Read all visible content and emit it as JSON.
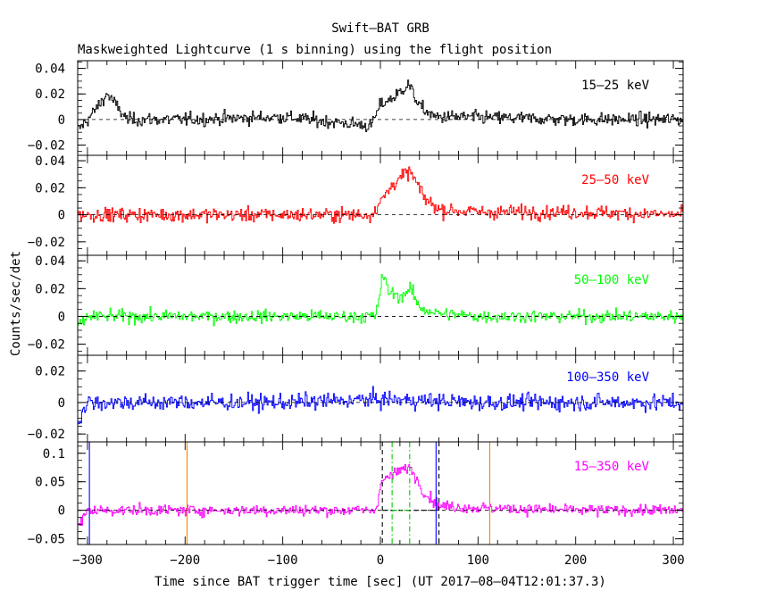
{
  "figure": {
    "title_line1": "Swift–BAT GRB",
    "title_line2": "Maskweighted Lightcurve (1 s binning) using the flight position",
    "ylabel": "Counts/sec/det",
    "xlabel": "Time since BAT trigger time [sec] (UT 2017–08–04T12:01:37.3)"
  },
  "chart_data": [
    {
      "type": "line",
      "name": "15–25 keV",
      "color": "#000000",
      "xlim": [
        -310,
        310
      ],
      "ylim": [
        -0.028,
        0.046
      ],
      "yticks": [
        -0.02,
        0,
        0.02,
        0.04
      ],
      "ytick_labels": [
        "−0.02",
        "0",
        "0.02",
        "0.04"
      ],
      "noise_sigma": 0.008,
      "pulses": [
        {
          "x": [
            0,
            20,
            30,
            45
          ],
          "y": [
            0.012,
            0.022,
            0.028,
            0.008
          ]
        }
      ],
      "series": [
        {
          "x": [
            -310,
            -300,
            -280,
            -260,
            -200,
            -100,
            -10,
            0,
            15,
            28,
            40,
            55,
            80,
            200,
            310
          ],
          "y": [
            -0.008,
            0.0,
            0.02,
            0.0,
            0.0,
            0.002,
            -0.005,
            0.012,
            0.018,
            0.028,
            0.01,
            0.002,
            0.002,
            0.0,
            0.0
          ]
        }
      ]
    },
    {
      "type": "line",
      "name": "25–50 keV",
      "color": "#ff0000",
      "xlim": [
        -310,
        310
      ],
      "ylim": [
        -0.03,
        0.044
      ],
      "yticks": [
        -0.02,
        0,
        0.02,
        0.04
      ],
      "ytick_labels": [
        "−0.02",
        "0",
        "0.02",
        "0.04"
      ],
      "noise_sigma": 0.008,
      "series": [
        {
          "x": [
            -310,
            -300,
            -200,
            -100,
            -10,
            0,
            15,
            30,
            45,
            60,
            100,
            200,
            310
          ],
          "y": [
            0.0,
            0.0,
            0.0,
            0.0,
            0.0,
            0.01,
            0.025,
            0.032,
            0.012,
            0.004,
            0.002,
            0.002,
            0.0
          ]
        }
      ]
    },
    {
      "type": "line",
      "name": "50–100 keV",
      "color": "#00ff00",
      "xlim": [
        -310,
        310
      ],
      "ylim": [
        -0.028,
        0.044
      ],
      "yticks": [
        -0.02,
        0,
        0.02,
        0.04
      ],
      "ytick_labels": [
        "−0.02",
        "0",
        "0.02",
        "0.04"
      ],
      "noise_sigma": 0.007,
      "series": [
        {
          "x": [
            -310,
            -300,
            -200,
            -100,
            -5,
            2,
            8,
            20,
            30,
            40,
            60,
            100,
            200,
            310
          ],
          "y": [
            -0.008,
            0.0,
            0.0,
            0.0,
            0.0,
            0.03,
            0.018,
            0.014,
            0.02,
            0.006,
            0.002,
            0.0,
            0.0,
            0.0
          ]
        }
      ]
    },
    {
      "type": "line",
      "name": "100–350 keV",
      "color": "#0000ff",
      "xlim": [
        -310,
        310
      ],
      "ylim": [
        -0.025,
        0.03
      ],
      "yticks": [
        -0.02,
        0,
        0.02
      ],
      "ytick_labels": [
        "−0.02",
        "0",
        "0.02"
      ],
      "noise_sigma": 0.008,
      "series": [
        {
          "x": [
            -310,
            -300,
            -200,
            -100,
            0,
            100,
            200,
            310
          ],
          "y": [
            -0.012,
            0.0,
            0.0,
            0.0,
            0.002,
            0.0,
            0.0,
            0.0
          ]
        }
      ]
    },
    {
      "type": "line",
      "name": "15–350 keV",
      "color": "#ff00ff",
      "xlim": [
        -310,
        310
      ],
      "ylim": [
        -0.06,
        0.12
      ],
      "yticks": [
        -0.05,
        0,
        0.05,
        0.1
      ],
      "ytick_labels": [
        "−0.05",
        "0",
        "0.05",
        "0.1"
      ],
      "noise_sigma": 0.015,
      "series": [
        {
          "x": [
            -310,
            -300,
            -200,
            -100,
            -5,
            0,
            10,
            20,
            30,
            45,
            60,
            100,
            200,
            310
          ],
          "y": [
            -0.03,
            0.0,
            0.0,
            0.0,
            0.0,
            0.05,
            0.06,
            0.07,
            0.075,
            0.03,
            0.008,
            0.004,
            0.0,
            0.0
          ]
        }
      ],
      "vlines": [
        {
          "x": -298,
          "color": "#0000ff",
          "style": "solid"
        },
        {
          "x": 57,
          "color": "#0000ff",
          "style": "solid"
        },
        {
          "x": -198,
          "color": "#ff8000",
          "style": "solid"
        },
        {
          "x": 112,
          "color": "#ff8000",
          "style": "solid"
        },
        {
          "x": 2,
          "color": "#000000",
          "style": "dashed"
        },
        {
          "x": 60,
          "color": "#000000",
          "style": "dashed"
        },
        {
          "x": 12,
          "color": "#00cc00",
          "style": "dashdot"
        },
        {
          "x": 30,
          "color": "#00cc00",
          "style": "dashdot"
        }
      ],
      "hsegments": [
        {
          "x1": 2,
          "x2": 60,
          "y": 0,
          "color": "#000000",
          "style": "dashed"
        },
        {
          "x1": 12,
          "x2": 30,
          "y": 0,
          "color": "#00cc00",
          "style": "dashdot"
        }
      ]
    }
  ],
  "x_axis": {
    "ticks": [
      -300,
      -200,
      -100,
      0,
      100,
      200,
      300
    ],
    "tick_labels": [
      "−300",
      "−200",
      "−100",
      "0",
      "100",
      "200",
      "300"
    ]
  }
}
